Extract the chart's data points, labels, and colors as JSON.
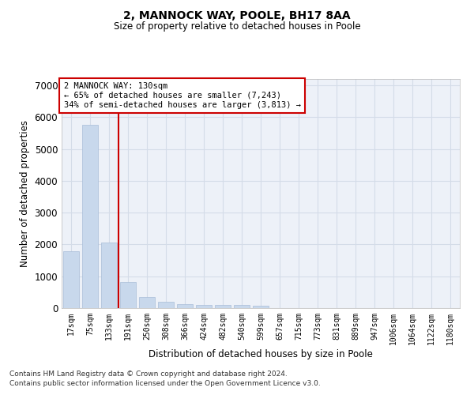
{
  "title_line1": "2, MANNOCK WAY, POOLE, BH17 8AA",
  "title_line2": "Size of property relative to detached houses in Poole",
  "xlabel": "Distribution of detached houses by size in Poole",
  "ylabel": "Number of detached properties",
  "bar_color": "#c8d8ec",
  "bar_edgecolor": "#a8bdd8",
  "grid_color": "#d4dce8",
  "background_color": "#edf1f8",
  "vline_color": "#cc0000",
  "vline_x": 2.5,
  "annotation_text": "2 MANNOCK WAY: 130sqm\n← 65% of detached houses are smaller (7,243)\n34% of semi-detached houses are larger (3,813) →",
  "annotation_box_color": "#ffffff",
  "annotation_box_edgecolor": "#cc0000",
  "categories": [
    "17sqm",
    "75sqm",
    "133sqm",
    "191sqm",
    "250sqm",
    "308sqm",
    "366sqm",
    "424sqm",
    "482sqm",
    "540sqm",
    "599sqm",
    "657sqm",
    "715sqm",
    "773sqm",
    "831sqm",
    "889sqm",
    "947sqm",
    "1006sqm",
    "1064sqm",
    "1122sqm",
    "1180sqm"
  ],
  "values": [
    1780,
    5770,
    2060,
    820,
    340,
    190,
    120,
    105,
    95,
    90,
    80,
    0,
    0,
    0,
    0,
    0,
    0,
    0,
    0,
    0,
    0
  ],
  "ylim": [
    0,
    7200
  ],
  "yticks": [
    0,
    1000,
    2000,
    3000,
    4000,
    5000,
    6000,
    7000
  ],
  "footnote_line1": "Contains HM Land Registry data © Crown copyright and database right 2024.",
  "footnote_line2": "Contains public sector information licensed under the Open Government Licence v3.0."
}
